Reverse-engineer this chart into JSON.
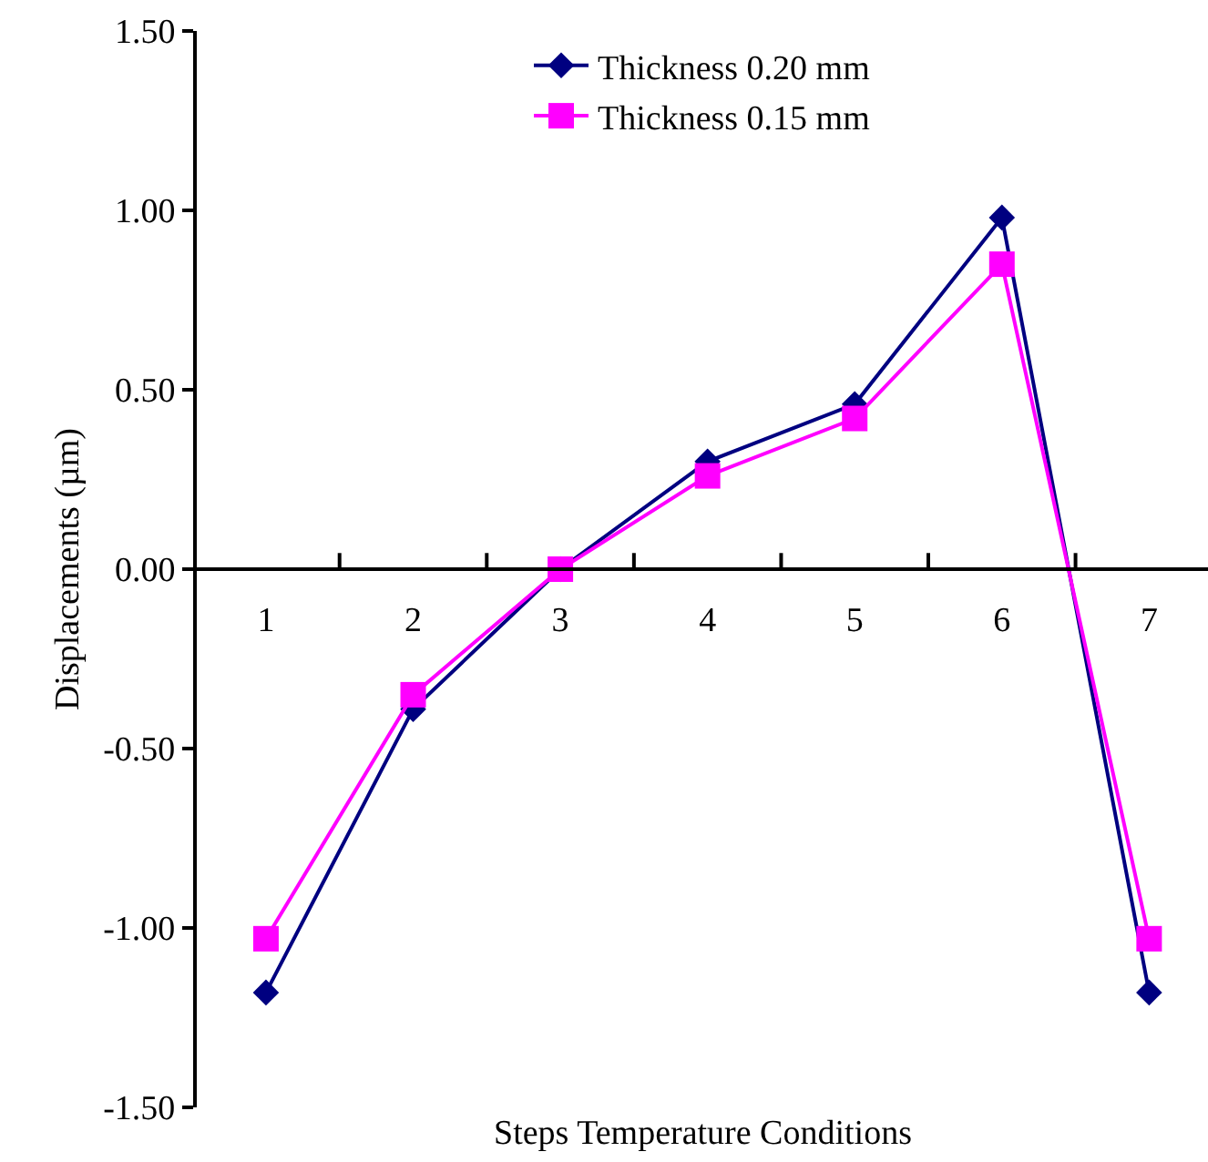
{
  "chart_data": {
    "type": "line",
    "xlabel": "Steps Temperature Conditions",
    "ylabel": "Displacements (µm)",
    "categories": [
      "1",
      "2",
      "3",
      "4",
      "5",
      "6",
      "7"
    ],
    "series": [
      {
        "name": "Thickness 0.20 mm",
        "color": "#000080",
        "marker": "diamond",
        "values": [
          -1.18,
          -0.39,
          0.0,
          0.3,
          0.46,
          0.98,
          -1.18
        ]
      },
      {
        "name": "Thickness 0.15 mm",
        "color": "#ff00ff",
        "marker": "square",
        "values": [
          -1.03,
          -0.35,
          0.0,
          0.26,
          0.42,
          0.85,
          -1.03
        ]
      }
    ],
    "ylim": [
      -1.5,
      1.5
    ],
    "yticks": [
      {
        "value": -1.5,
        "label": "-1.50"
      },
      {
        "value": -1.0,
        "label": "-1.00"
      },
      {
        "value": -0.5,
        "label": "-0.50"
      },
      {
        "value": 0.0,
        "label": "0.00"
      },
      {
        "value": 0.5,
        "label": "0.50"
      },
      {
        "value": 1.0,
        "label": "1.00"
      },
      {
        "value": 1.5,
        "label": "1.50"
      }
    ],
    "legend": "top",
    "line_style": "solid"
  }
}
